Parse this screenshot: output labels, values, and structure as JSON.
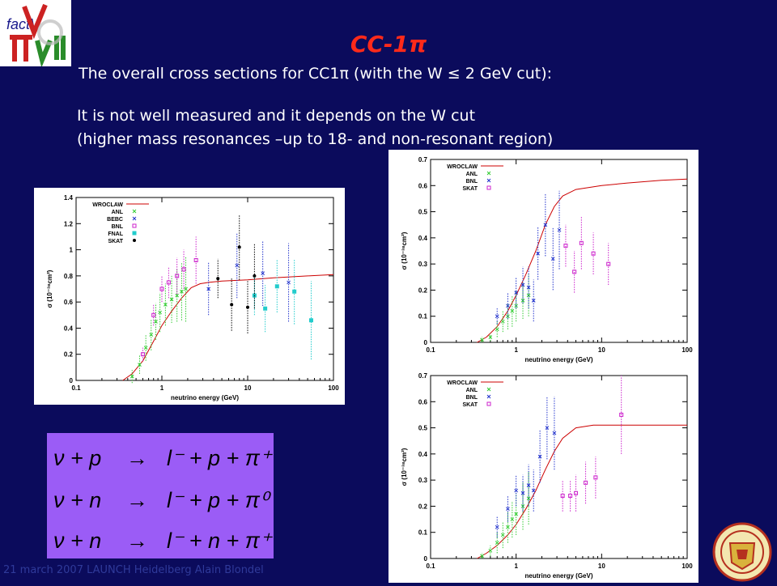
{
  "slide": {
    "title": "CC-1π",
    "line1": "The overall cross sections for CC1π  (with the W ≤ 2 GeV cut):",
    "line2": "It is not well measured and it depends on the W cut",
    "line3": "(higher mass resonances –up to 18- and non-resonant region)",
    "footer": "21 march 2007 LAUNCH Heidelberg  Alain Blondel",
    "logo_text": "factV"
  },
  "reactions": [
    {
      "lhs": "ν + p",
      "arrow": "→",
      "rhs": "l⁻ + p + π⁺"
    },
    {
      "lhs": "ν + n",
      "arrow": "→",
      "rhs": "l⁻ + p + π⁰"
    },
    {
      "lhs": "ν + n",
      "arrow": "→",
      "rhs": "l⁻ + n + π⁺"
    }
  ],
  "chart_data": [
    {
      "type": "scatter",
      "title": "",
      "xlabel": "neutrino energy (GeV)",
      "ylabel": "σ (10⁻³⁸cm²)",
      "xscale": "log",
      "xlim": [
        0.1,
        100
      ],
      "ylim": [
        0,
        1.4
      ],
      "xticks": [
        "0.1",
        "1",
        "10",
        "100"
      ],
      "yticks": [
        "0",
        "0.2",
        "0.4",
        "0.6",
        "0.8",
        "1",
        "1.2",
        "1.4"
      ],
      "legend_position": "top-left",
      "series": [
        {
          "name": "WROCLAW",
          "kind": "line",
          "color": "#cc0000",
          "x": [
            0.35,
            0.45,
            0.6,
            0.8,
            1.0,
            1.3,
            1.7,
            2.2,
            2.8,
            3.5,
            5,
            10,
            20,
            50,
            100
          ],
          "y": [
            0,
            0.05,
            0.15,
            0.3,
            0.42,
            0.53,
            0.63,
            0.71,
            0.74,
            0.75,
            0.76,
            0.77,
            0.785,
            0.8,
            0.81
          ]
        },
        {
          "name": "ANL",
          "kind": "points",
          "color": "#33cc33",
          "marker": "x",
          "x": [
            0.45,
            0.55,
            0.65,
            0.75,
            0.85,
            0.95,
            1.1,
            1.3,
            1.5,
            1.7,
            1.9
          ],
          "y": [
            0.03,
            0.12,
            0.25,
            0.35,
            0.45,
            0.52,
            0.58,
            0.62,
            0.65,
            0.68,
            0.7
          ],
          "err": [
            0.05,
            0.07,
            0.1,
            0.12,
            0.14,
            0.15,
            0.16,
            0.18,
            0.2,
            0.22,
            0.25
          ]
        },
        {
          "name": "BEBC",
          "kind": "points",
          "color": "#2233cc",
          "marker": "x",
          "x": [
            3.5,
            7.5,
            15,
            30
          ],
          "y": [
            0.7,
            0.88,
            0.82,
            0.75
          ],
          "err": [
            0.2,
            0.25,
            0.25,
            0.3
          ]
        },
        {
          "name": "BNL",
          "kind": "points",
          "color": "#cc22cc",
          "marker": "square",
          "x": [
            0.6,
            0.8,
            1.0,
            1.2,
            1.5,
            1.8,
            2.5
          ],
          "y": [
            0.2,
            0.5,
            0.7,
            0.75,
            0.8,
            0.85,
            0.92
          ],
          "err": [
            0.05,
            0.08,
            0.1,
            0.12,
            0.14,
            0.15,
            0.18
          ]
        },
        {
          "name": "FNAL",
          "kind": "points",
          "color": "#22cccc",
          "marker": "filled-square",
          "x": [
            12,
            16,
            22,
            35,
            55
          ],
          "y": [
            0.65,
            0.55,
            0.72,
            0.68,
            0.46
          ],
          "err": [
            0.15,
            0.18,
            0.2,
            0.25,
            0.3
          ]
        },
        {
          "name": "SKAT",
          "kind": "points",
          "color": "#000000",
          "marker": "dot",
          "x": [
            4.5,
            6.5,
            8,
            10,
            12
          ],
          "y": [
            0.78,
            0.58,
            1.02,
            0.56,
            0.8
          ],
          "err": [
            0.15,
            0.2,
            0.25,
            0.2,
            0.25
          ]
        }
      ]
    },
    {
      "type": "scatter",
      "title": "",
      "xlabel": "neutrino energy (GeV)",
      "ylabel": "σ (10⁻³⁸cm²)",
      "xscale": "log",
      "xlim": [
        0.1,
        100
      ],
      "ylim": [
        0,
        0.7
      ],
      "xticks": [
        "0.1",
        "1",
        "10",
        "100"
      ],
      "yticks": [
        "0",
        "0.1",
        "0.2",
        "0.3",
        "0.4",
        "0.5",
        "0.6",
        "0.7"
      ],
      "legend_position": "top-left",
      "series": [
        {
          "name": "WROCLAW",
          "kind": "line",
          "color": "#cc0000",
          "x": [
            0.35,
            0.45,
            0.6,
            0.8,
            1.0,
            1.3,
            1.7,
            2.2,
            2.8,
            3.5,
            5,
            10,
            20,
            50,
            100
          ],
          "y": [
            0,
            0.02,
            0.06,
            0.12,
            0.18,
            0.26,
            0.35,
            0.45,
            0.52,
            0.56,
            0.585,
            0.6,
            0.61,
            0.62,
            0.625
          ],
          "color_line": "#cc0000"
        },
        {
          "name": "ANL",
          "kind": "points",
          "color": "#33cc33",
          "marker": "x",
          "x": [
            0.4,
            0.5,
            0.6,
            0.7,
            0.8,
            0.9,
            1.0,
            1.2,
            1.4
          ],
          "y": [
            0.01,
            0.02,
            0.05,
            0.08,
            0.1,
            0.12,
            0.14,
            0.16,
            0.18
          ],
          "err": [
            0.01,
            0.015,
            0.03,
            0.04,
            0.05,
            0.06,
            0.06,
            0.07,
            0.08
          ]
        },
        {
          "name": "BNL",
          "kind": "points",
          "color": "#2233cc",
          "marker": "x",
          "x": [
            0.6,
            0.8,
            1.0,
            1.2,
            1.4,
            1.6,
            1.8,
            2.2,
            2.7,
            3.2
          ],
          "y": [
            0.1,
            0.14,
            0.19,
            0.22,
            0.21,
            0.16,
            0.34,
            0.45,
            0.32,
            0.43
          ],
          "err": [
            0.03,
            0.05,
            0.06,
            0.07,
            0.08,
            0.08,
            0.1,
            0.12,
            0.12,
            0.15
          ]
        },
        {
          "name": "SKAT",
          "kind": "points",
          "color": "#cc22cc",
          "marker": "square",
          "x": [
            3.8,
            4.8,
            5.8,
            8,
            12
          ],
          "y": [
            0.37,
            0.27,
            0.38,
            0.34,
            0.3
          ],
          "err": [
            0.08,
            0.08,
            0.1,
            0.08,
            0.08
          ]
        }
      ]
    },
    {
      "type": "scatter",
      "title": "",
      "xlabel": "neutrino energy (GeV)",
      "ylabel": "σ (10⁻³⁸cm²)",
      "xscale": "log",
      "xlim": [
        0.1,
        100
      ],
      "ylim": [
        0,
        0.7
      ],
      "xticks": [
        "0.1",
        "1",
        "10",
        "100"
      ],
      "yticks": [
        "0",
        "0.1",
        "0.2",
        "0.3",
        "0.4",
        "0.5",
        "0.6",
        "0.7"
      ],
      "legend_position": "top-left",
      "series": [
        {
          "name": "WROCLAW",
          "kind": "line",
          "color": "#cc0000",
          "x": [
            0.35,
            0.45,
            0.6,
            0.8,
            1.0,
            1.3,
            1.7,
            2.2,
            2.8,
            3.5,
            5,
            8,
            20,
            50,
            100
          ],
          "y": [
            0,
            0.02,
            0.05,
            0.09,
            0.13,
            0.19,
            0.26,
            0.34,
            0.41,
            0.46,
            0.5,
            0.51,
            0.51,
            0.51,
            0.51
          ]
        },
        {
          "name": "ANL",
          "kind": "points",
          "color": "#33cc33",
          "marker": "x",
          "x": [
            0.4,
            0.5,
            0.6,
            0.7,
            0.8,
            0.9,
            1.0,
            1.2,
            1.4
          ],
          "y": [
            0.01,
            0.03,
            0.06,
            0.09,
            0.12,
            0.15,
            0.17,
            0.2,
            0.23
          ],
          "err": [
            0.01,
            0.02,
            0.04,
            0.05,
            0.06,
            0.07,
            0.08,
            0.09,
            0.1
          ]
        },
        {
          "name": "BNL",
          "kind": "points",
          "color": "#2233cc",
          "marker": "x",
          "x": [
            0.6,
            0.8,
            1.0,
            1.2,
            1.4,
            1.6,
            1.9,
            2.3,
            2.8
          ],
          "y": [
            0.12,
            0.19,
            0.26,
            0.25,
            0.28,
            0.26,
            0.39,
            0.5,
            0.48
          ],
          "err": [
            0.04,
            0.05,
            0.06,
            0.07,
            0.08,
            0.08,
            0.1,
            0.12,
            0.14
          ]
        },
        {
          "name": "SKAT",
          "kind": "points",
          "color": "#cc22cc",
          "marker": "square",
          "x": [
            3.5,
            4.3,
            5,
            6.5,
            8.5,
            17
          ],
          "y": [
            0.24,
            0.24,
            0.25,
            0.29,
            0.31,
            0.55
          ],
          "err": [
            0.06,
            0.06,
            0.07,
            0.08,
            0.08,
            0.15
          ]
        }
      ]
    }
  ]
}
